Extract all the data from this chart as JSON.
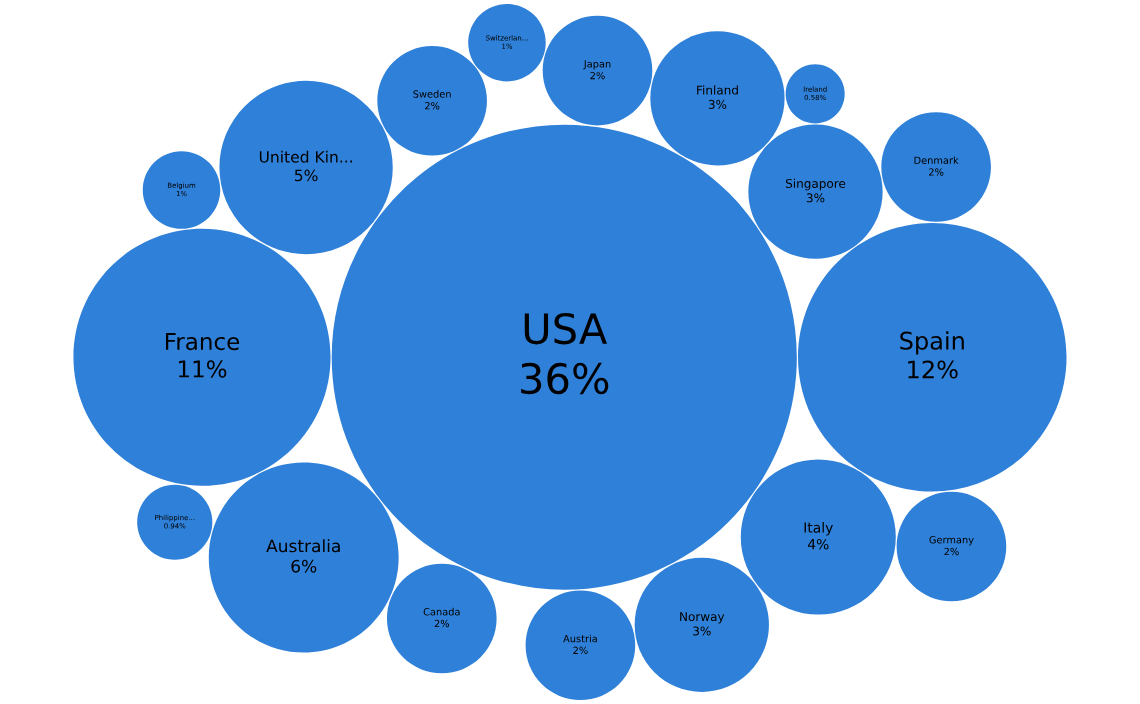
{
  "chart_data": {
    "type": "other",
    "categories": [
      "USA",
      "Spain",
      "France",
      "Australia",
      "United Kin...",
      "Italy",
      "Singapore",
      "Finland",
      "Norway",
      "Sweden",
      "Canada",
      "Japan",
      "Austria",
      "Denmark",
      "Germany",
      "Switzerlan...",
      "Belgium",
      "Philippine...",
      "Ireland"
    ],
    "values": [
      36,
      12,
      11,
      6,
      5,
      4,
      3,
      3,
      3,
      2,
      2,
      2,
      2,
      2,
      2,
      1,
      1,
      0.94,
      0.58
    ],
    "value_labels": [
      "36%",
      "12%",
      "11%",
      "6%",
      "5%",
      "4%",
      "3%",
      "3%",
      "3%",
      "2%",
      "2%",
      "2%",
      "2%",
      "2%",
      "2%",
      "1%",
      "1%",
      "0.94%",
      "0.58%"
    ],
    "color": "#2f80d8"
  }
}
